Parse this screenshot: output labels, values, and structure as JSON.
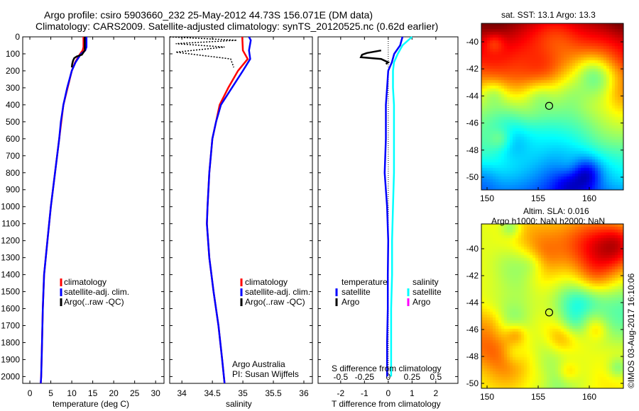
{
  "title": {
    "line1": "Argo profile: csiro 5903660_232 25-May-2012 44.73S 156.071E (DM data)",
    "line2": "Climatology: CARS2009. Satellite-adjusted climatology: synTS_20120525.nc (0.62d earlier)"
  },
  "depth_ticks": [
    "0",
    "100",
    "200",
    "300",
    "400",
    "500",
    "600",
    "700",
    "800",
    "900",
    "1000",
    "1100",
    "1200",
    "1300",
    "1400",
    "1500",
    "1600",
    "1700",
    "1800",
    "1900",
    "2000"
  ],
  "legend": {
    "climatology": "climatology",
    "satellite": "satellite-adj. clim.",
    "argo": "Argo(..raw -QC)"
  },
  "credit": {
    "line1": "Argo Australia",
    "line2": "PI: Susan Wijffels"
  },
  "diff_legend": {
    "temperature": "temperature",
    "salinity": "salinity",
    "t_sat": "satellite",
    "t_argo": "Argo",
    "s_sat": "satellite",
    "s_argo": "Argo"
  },
  "colors": {
    "climatology": "#ff0000",
    "satellite": "#0000ff",
    "argo": "#000000",
    "s_satellite": "#00ffff",
    "s_argo": "#ff00ff"
  },
  "maps": {
    "sst_title": "sat. SST: 13.1 Argo: 13.3",
    "sla_title1": "Altim. SLA: 0.016",
    "sla_title2": "Argo h1000: NaN h2000: NaN",
    "lat_ticks": [
      "-40",
      "-42",
      "-44",
      "-46",
      "-48",
      "-50"
    ],
    "lon_ticks": [
      "150",
      "155",
      "160"
    ],
    "profile_lon": 156.071,
    "profile_lat": -44.73,
    "copyright": "©IMOS 03-Aug-2017 16:10:06"
  },
  "chart_data": [
    {
      "type": "line",
      "xlabel": "temperature (deg C)",
      "ylabel": "",
      "xlim": [
        -1.7,
        32
      ],
      "ylim": [
        2040,
        0
      ],
      "xticks": [
        "0",
        "5",
        "10",
        "15",
        "20",
        "25",
        "30"
      ],
      "series": [
        {
          "name": "climatology",
          "depth": [
            0,
            60,
            80,
            100,
            150,
            200,
            300,
            400,
            500,
            600,
            800,
            1000,
            1200,
            1400,
            1600,
            1800,
            2000,
            2040
          ],
          "values": [
            12.8,
            12.8,
            12.6,
            12.0,
            10.8,
            10.0,
            9.0,
            8.0,
            7.5,
            7.0,
            6.0,
            5.0,
            4.2,
            3.4,
            3.1,
            2.9,
            2.7,
            2.6
          ]
        },
        {
          "name": "satellite-adj. clim.",
          "depth": [
            0,
            60,
            80,
            100,
            150,
            200,
            300,
            400,
            500,
            600,
            800,
            1000,
            1200,
            1400,
            1600,
            1800,
            2000,
            2040
          ],
          "values": [
            13.5,
            13.5,
            13.2,
            12.2,
            10.9,
            10.0,
            8.9,
            8.0,
            7.4,
            7.0,
            6.0,
            5.0,
            4.2,
            3.4,
            3.1,
            2.9,
            2.7,
            2.6
          ]
        },
        {
          "name": "Argo(..raw -QC)",
          "depth": [
            0,
            80,
            105,
            115,
            125,
            140,
            160,
            180
          ],
          "values": [
            13.1,
            13.1,
            12.4,
            11.2,
            10.6,
            10.3,
            10.1,
            10.0
          ]
        }
      ]
    },
    {
      "type": "line",
      "xlabel": "salinity",
      "xlim": [
        33.8,
        36.14
      ],
      "ylim": [
        2040,
        0
      ],
      "xticks": [
        "34",
        "34.5",
        "35",
        "35.5",
        "36"
      ],
      "series": [
        {
          "name": "climatology",
          "depth": [
            0,
            80,
            130,
            200,
            300,
            400,
            500,
            600,
            800,
            1000,
            1100,
            1300,
            1500,
            1700,
            1900,
            2040
          ],
          "values": [
            34.99,
            35.0,
            35.08,
            34.92,
            34.76,
            34.62,
            34.56,
            34.5,
            34.45,
            34.42,
            34.41,
            34.45,
            34.52,
            34.6,
            34.66,
            34.7
          ]
        },
        {
          "name": "satellite-adj. clim.",
          "depth": [
            0,
            20,
            80,
            130,
            200,
            300,
            400,
            500,
            600,
            800,
            1000,
            1100,
            1300,
            1500,
            1700,
            1900,
            2040
          ],
          "values": [
            35.1,
            35.13,
            35.1,
            35.12,
            35.0,
            34.82,
            34.64,
            34.56,
            34.5,
            34.45,
            34.42,
            34.41,
            34.45,
            34.52,
            34.6,
            34.66,
            34.7
          ]
        },
        {
          "name": "Argo(..raw -QC)",
          "depth": [
            0,
            20,
            40,
            60,
            90,
            130,
            180
          ],
          "values": [
            33.8,
            34.9,
            33.9,
            34.7,
            33.9,
            34.8,
            34.85
          ]
        }
      ]
    },
    {
      "type": "line",
      "xlabel": "T difference from climatology",
      "xlabel2": "S difference from climatology",
      "xlim": [
        -2.95,
        2.93
      ],
      "ylim": [
        2040,
        0
      ],
      "xticks": [
        "-2",
        "-1",
        "0",
        "1",
        "2"
      ],
      "xticks2": [
        "-0.5",
        "-0.25",
        "0",
        "0.25",
        "0.5"
      ],
      "series": [
        {
          "name": "T satellite",
          "depth": [
            0,
            50,
            100,
            150,
            200,
            300,
            400,
            600,
            800,
            1000,
            1200,
            1400,
            1600,
            1800,
            2000
          ],
          "values": [
            0.6,
            0.5,
            0.25,
            0.15,
            0.0,
            -0.05,
            -0.1,
            -0.1,
            -0.15,
            -0.05,
            0.0,
            -0.02,
            -0.02,
            -0.05,
            -0.05
          ]
        },
        {
          "name": "S satellite",
          "depth": [
            0,
            50,
            100,
            150,
            200,
            300,
            400,
            600,
            800,
            1000,
            1200,
            1400,
            1600,
            1800,
            2000
          ],
          "values": [
            0.25,
            0.15,
            0.1,
            0.06,
            0.05,
            0.05,
            0.06,
            0.06,
            0.06,
            0.05,
            0.04,
            0.04,
            0.03,
            0.03,
            0.03
          ]
        },
        {
          "name": "T Argo",
          "depth": [
            80,
            95,
            105,
            120,
            130,
            150,
            160
          ],
          "values": [
            -0.3,
            -0.9,
            -1.1,
            -1.15,
            -0.3,
            0.0,
            -0.1
          ]
        },
        {
          "name": "S Argo",
          "depth": [],
          "values": []
        }
      ]
    }
  ]
}
